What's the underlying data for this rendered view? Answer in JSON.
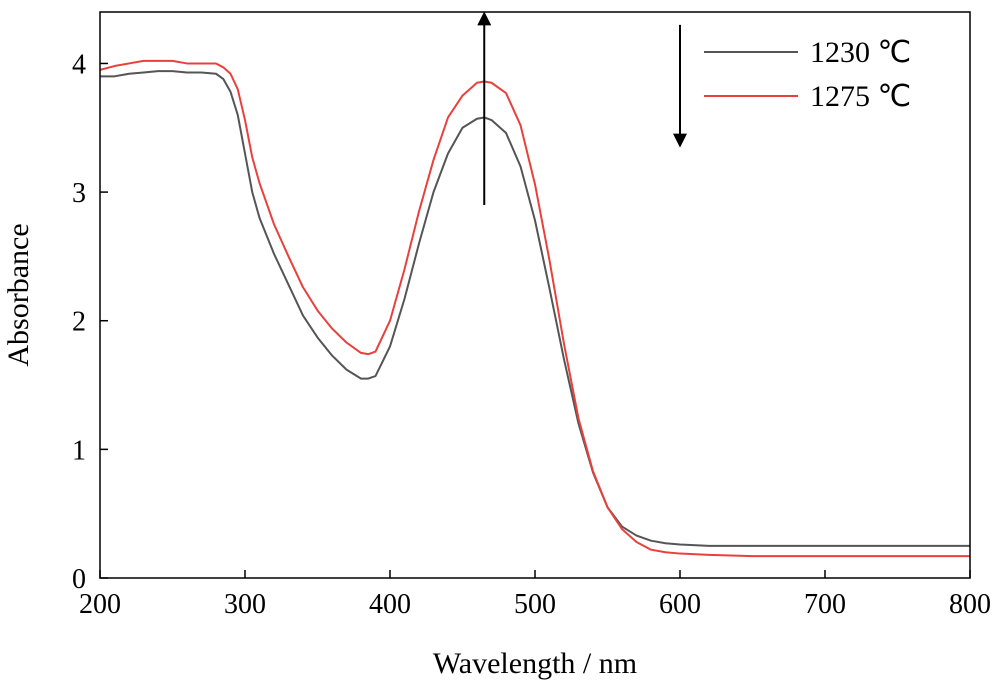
{
  "chart_data": {
    "type": "line",
    "xlabel": "Wavelength / nm",
    "ylabel": "Absorbance",
    "xlim": [
      200,
      800
    ],
    "ylim": [
      0,
      4.4
    ],
    "xticks": [
      200,
      300,
      400,
      500,
      600,
      700,
      800
    ],
    "yticks": [
      0,
      1,
      2,
      3,
      4
    ],
    "grid": false,
    "legend": {
      "position": "top-right"
    },
    "series": [
      {
        "name": "1230 ℃",
        "color": "#555555",
        "x": [
          200,
          210,
          220,
          230,
          240,
          250,
          260,
          270,
          280,
          285,
          290,
          295,
          300,
          305,
          310,
          320,
          330,
          340,
          350,
          360,
          370,
          380,
          385,
          390,
          400,
          410,
          420,
          430,
          440,
          450,
          460,
          465,
          470,
          480,
          490,
          500,
          510,
          520,
          530,
          540,
          550,
          560,
          570,
          580,
          590,
          600,
          620,
          650,
          700,
          750,
          800
        ],
        "y": [
          3.9,
          3.9,
          3.92,
          3.93,
          3.94,
          3.94,
          3.93,
          3.93,
          3.92,
          3.88,
          3.78,
          3.6,
          3.3,
          3.0,
          2.8,
          2.52,
          2.28,
          2.04,
          1.87,
          1.73,
          1.62,
          1.55,
          1.55,
          1.57,
          1.8,
          2.17,
          2.6,
          3.0,
          3.3,
          3.5,
          3.57,
          3.58,
          3.56,
          3.46,
          3.2,
          2.78,
          2.25,
          1.7,
          1.2,
          0.82,
          0.55,
          0.4,
          0.33,
          0.29,
          0.27,
          0.26,
          0.25,
          0.25,
          0.25,
          0.25,
          0.25
        ]
      },
      {
        "name": "1275 ℃",
        "color": "#e8413c",
        "x": [
          200,
          210,
          220,
          230,
          240,
          250,
          260,
          270,
          280,
          285,
          290,
          295,
          300,
          305,
          310,
          320,
          330,
          340,
          350,
          360,
          370,
          380,
          385,
          390,
          400,
          410,
          420,
          430,
          440,
          450,
          460,
          465,
          470,
          480,
          490,
          500,
          510,
          520,
          530,
          540,
          550,
          560,
          570,
          580,
          590,
          600,
          620,
          650,
          700,
          750,
          800
        ],
        "y": [
          3.95,
          3.98,
          4.0,
          4.02,
          4.02,
          4.02,
          4.0,
          4.0,
          4.0,
          3.97,
          3.92,
          3.8,
          3.56,
          3.27,
          3.07,
          2.75,
          2.5,
          2.26,
          2.08,
          1.94,
          1.83,
          1.75,
          1.74,
          1.76,
          2.0,
          2.4,
          2.85,
          3.25,
          3.58,
          3.75,
          3.85,
          3.86,
          3.85,
          3.77,
          3.52,
          3.06,
          2.47,
          1.82,
          1.24,
          0.83,
          0.55,
          0.38,
          0.28,
          0.22,
          0.2,
          0.19,
          0.18,
          0.17,
          0.17,
          0.17,
          0.17
        ]
      }
    ],
    "annotations": [
      {
        "type": "arrow",
        "direction": "up",
        "x": 465,
        "y_from": 2.9,
        "y_to": 4.35
      },
      {
        "type": "arrow",
        "direction": "down",
        "x": 600,
        "y_from": 4.3,
        "y_to": 3.4
      }
    ]
  }
}
